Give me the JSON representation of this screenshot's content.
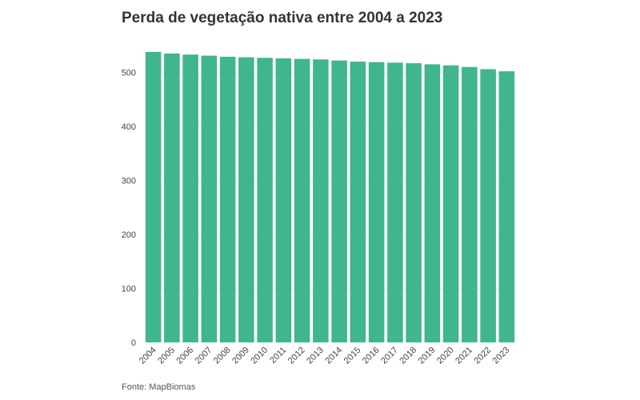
{
  "chart_data": {
    "type": "bar",
    "title": "Perda de vegetação nativa entre 2004 a 2023",
    "source": "Fonte: MapBiomas",
    "categories": [
      "2004",
      "2005",
      "2006",
      "2007",
      "2008",
      "2009",
      "2010",
      "2011",
      "2012",
      "2013",
      "2014",
      "2015",
      "2016",
      "2017",
      "2018",
      "2019",
      "2020",
      "2021",
      "2022",
      "2023"
    ],
    "values": [
      538,
      535,
      533,
      531,
      529,
      528,
      527,
      526,
      525,
      524,
      522,
      520,
      519,
      518,
      517,
      515,
      513,
      510,
      506,
      502
    ],
    "ylim": [
      0,
      560
    ],
    "yticks": [
      0,
      100,
      200,
      300,
      400,
      500
    ],
    "xlabel": "",
    "ylabel": "",
    "grid": true,
    "legend": "none",
    "bar_color": "#3fb68b"
  }
}
